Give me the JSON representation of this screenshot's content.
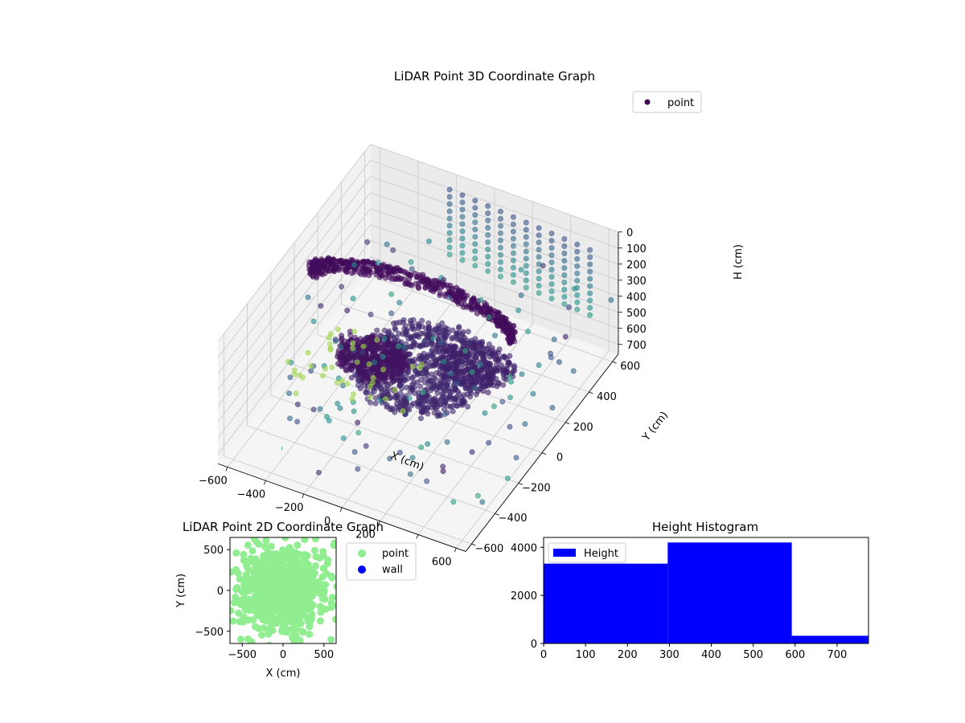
{
  "chart_data": [
    {
      "type": "scatter",
      "title": "LiDAR Point 3D Coordinate Graph",
      "xlabel": "X (cm)",
      "ylabel": "Y (cm)",
      "zlabel": "H (cm)",
      "x_ticks": [
        "−600",
        "−400",
        "−200",
        "0",
        "200",
        "400",
        "600"
      ],
      "y_ticks": [
        "−600",
        "−400",
        "−200",
        "0",
        "200",
        "400",
        "600"
      ],
      "z_ticks": [
        "0",
        "100",
        "200",
        "300",
        "400",
        "500",
        "600",
        "700"
      ],
      "xlim": [
        -650,
        650
      ],
      "ylim": [
        -650,
        650
      ],
      "zlim": [
        0,
        760
      ],
      "z_inverted": true,
      "legend": {
        "placement": "top-right",
        "entries": [
          {
            "label": "point",
            "color": "#440154"
          }
        ]
      },
      "colormap": "viridis",
      "grid": true
    },
    {
      "type": "scatter",
      "title": "LiDAR Point 2D Coordinate Graph",
      "xlabel": "X (cm)",
      "ylabel": "Y (cm)",
      "x_ticks": [
        -500,
        0,
        500
      ],
      "y_ticks": [
        -500,
        0,
        500
      ],
      "xlim": [
        -650,
        650
      ],
      "ylim": [
        -650,
        650
      ],
      "legend": {
        "placement": "outside-right",
        "entries": [
          {
            "label": "point",
            "color": "#90ee90"
          },
          {
            "label": "wall",
            "color": "#0000ff"
          }
        ]
      }
    },
    {
      "type": "bar",
      "title": "Height Histogram",
      "series": [
        {
          "name": "Height",
          "color": "#0000ff"
        }
      ],
      "bins": [
        {
          "x0": 0,
          "x1": 296,
          "count": 3320
        },
        {
          "x0": 296,
          "x1": 592,
          "count": 4200
        },
        {
          "x0": 592,
          "x1": 775,
          "count": 320
        }
      ],
      "xlim": [
        0,
        775
      ],
      "ylim": [
        0,
        4410
      ],
      "x_ticks": [
        0,
        100,
        200,
        300,
        400,
        500,
        600,
        700
      ],
      "y_ticks": [
        0,
        2000,
        4000
      ],
      "legend": {
        "placement": "top-left"
      }
    }
  ]
}
